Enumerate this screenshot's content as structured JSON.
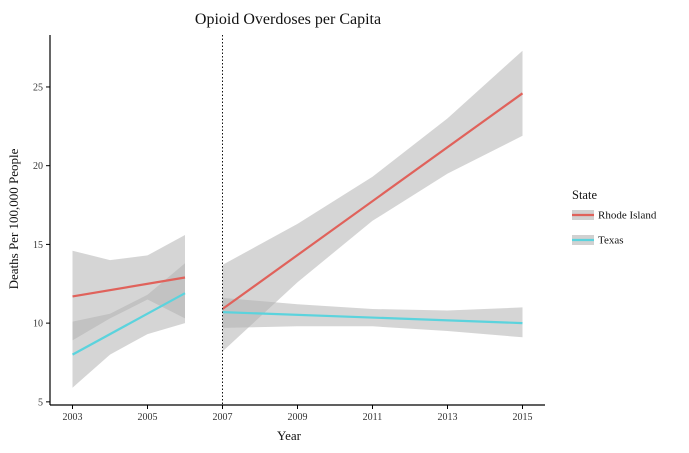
{
  "chart_data": {
    "type": "line",
    "title": "Opioid Overdoses per Capita",
    "xlabel": "Year",
    "ylabel": "Deaths Per 100,000 People",
    "xlim": [
      2002.4,
      2015.6
    ],
    "ylim": [
      4.8,
      28.3
    ],
    "x_ticks": [
      2003,
      2005,
      2007,
      2009,
      2011,
      2013,
      2015
    ],
    "y_ticks": [
      5,
      10,
      15,
      20,
      25
    ],
    "grid": false,
    "vline": {
      "x": 2007,
      "style": "dotted"
    },
    "band_color": "#b3b3b3",
    "legend": {
      "title": "State",
      "placement": "right",
      "entries": [
        {
          "label": "Rhode Island",
          "color": "#e0625b"
        },
        {
          "label": "Texas",
          "color": "#5bd3dd"
        }
      ]
    },
    "series": [
      {
        "name": "Rhode Island",
        "color": "#e0625b",
        "segments": [
          {
            "x": [
              2003,
              2006
            ],
            "y": [
              11.7,
              12.9
            ],
            "ci": {
              "x": [
                2003,
                2004,
                2005,
                2006
              ],
              "lower": [
                8.9,
                10.3,
                11.5,
                10.3
              ],
              "upper": [
                14.6,
                14.0,
                14.3,
                15.6
              ]
            }
          },
          {
            "x": [
              2007,
              2015
            ],
            "y": [
              10.9,
              24.6
            ],
            "ci": {
              "x": [
                2007,
                2009,
                2011,
                2013,
                2015
              ],
              "lower": [
                8.2,
                12.6,
                16.5,
                19.5,
                21.9
              ],
              "upper": [
                13.7,
                16.3,
                19.3,
                23.0,
                27.3
              ]
            }
          }
        ]
      },
      {
        "name": "Texas",
        "color": "#5bd3dd",
        "segments": [
          {
            "x": [
              2003,
              2006
            ],
            "y": [
              8.0,
              11.9
            ],
            "ci": {
              "x": [
                2003,
                2004,
                2005,
                2006
              ],
              "lower": [
                5.9,
                8.0,
                9.3,
                10.0
              ],
              "upper": [
                10.1,
                10.6,
                11.8,
                13.8
              ]
            }
          },
          {
            "x": [
              2007,
              2015
            ],
            "y": [
              10.7,
              10.0
            ],
            "ci": {
              "x": [
                2007,
                2009,
                2011,
                2013,
                2015
              ],
              "lower": [
                9.7,
                9.8,
                9.8,
                9.5,
                9.1
              ],
              "upper": [
                11.6,
                11.2,
                10.9,
                10.8,
                11.0
              ]
            }
          }
        ]
      }
    ]
  }
}
